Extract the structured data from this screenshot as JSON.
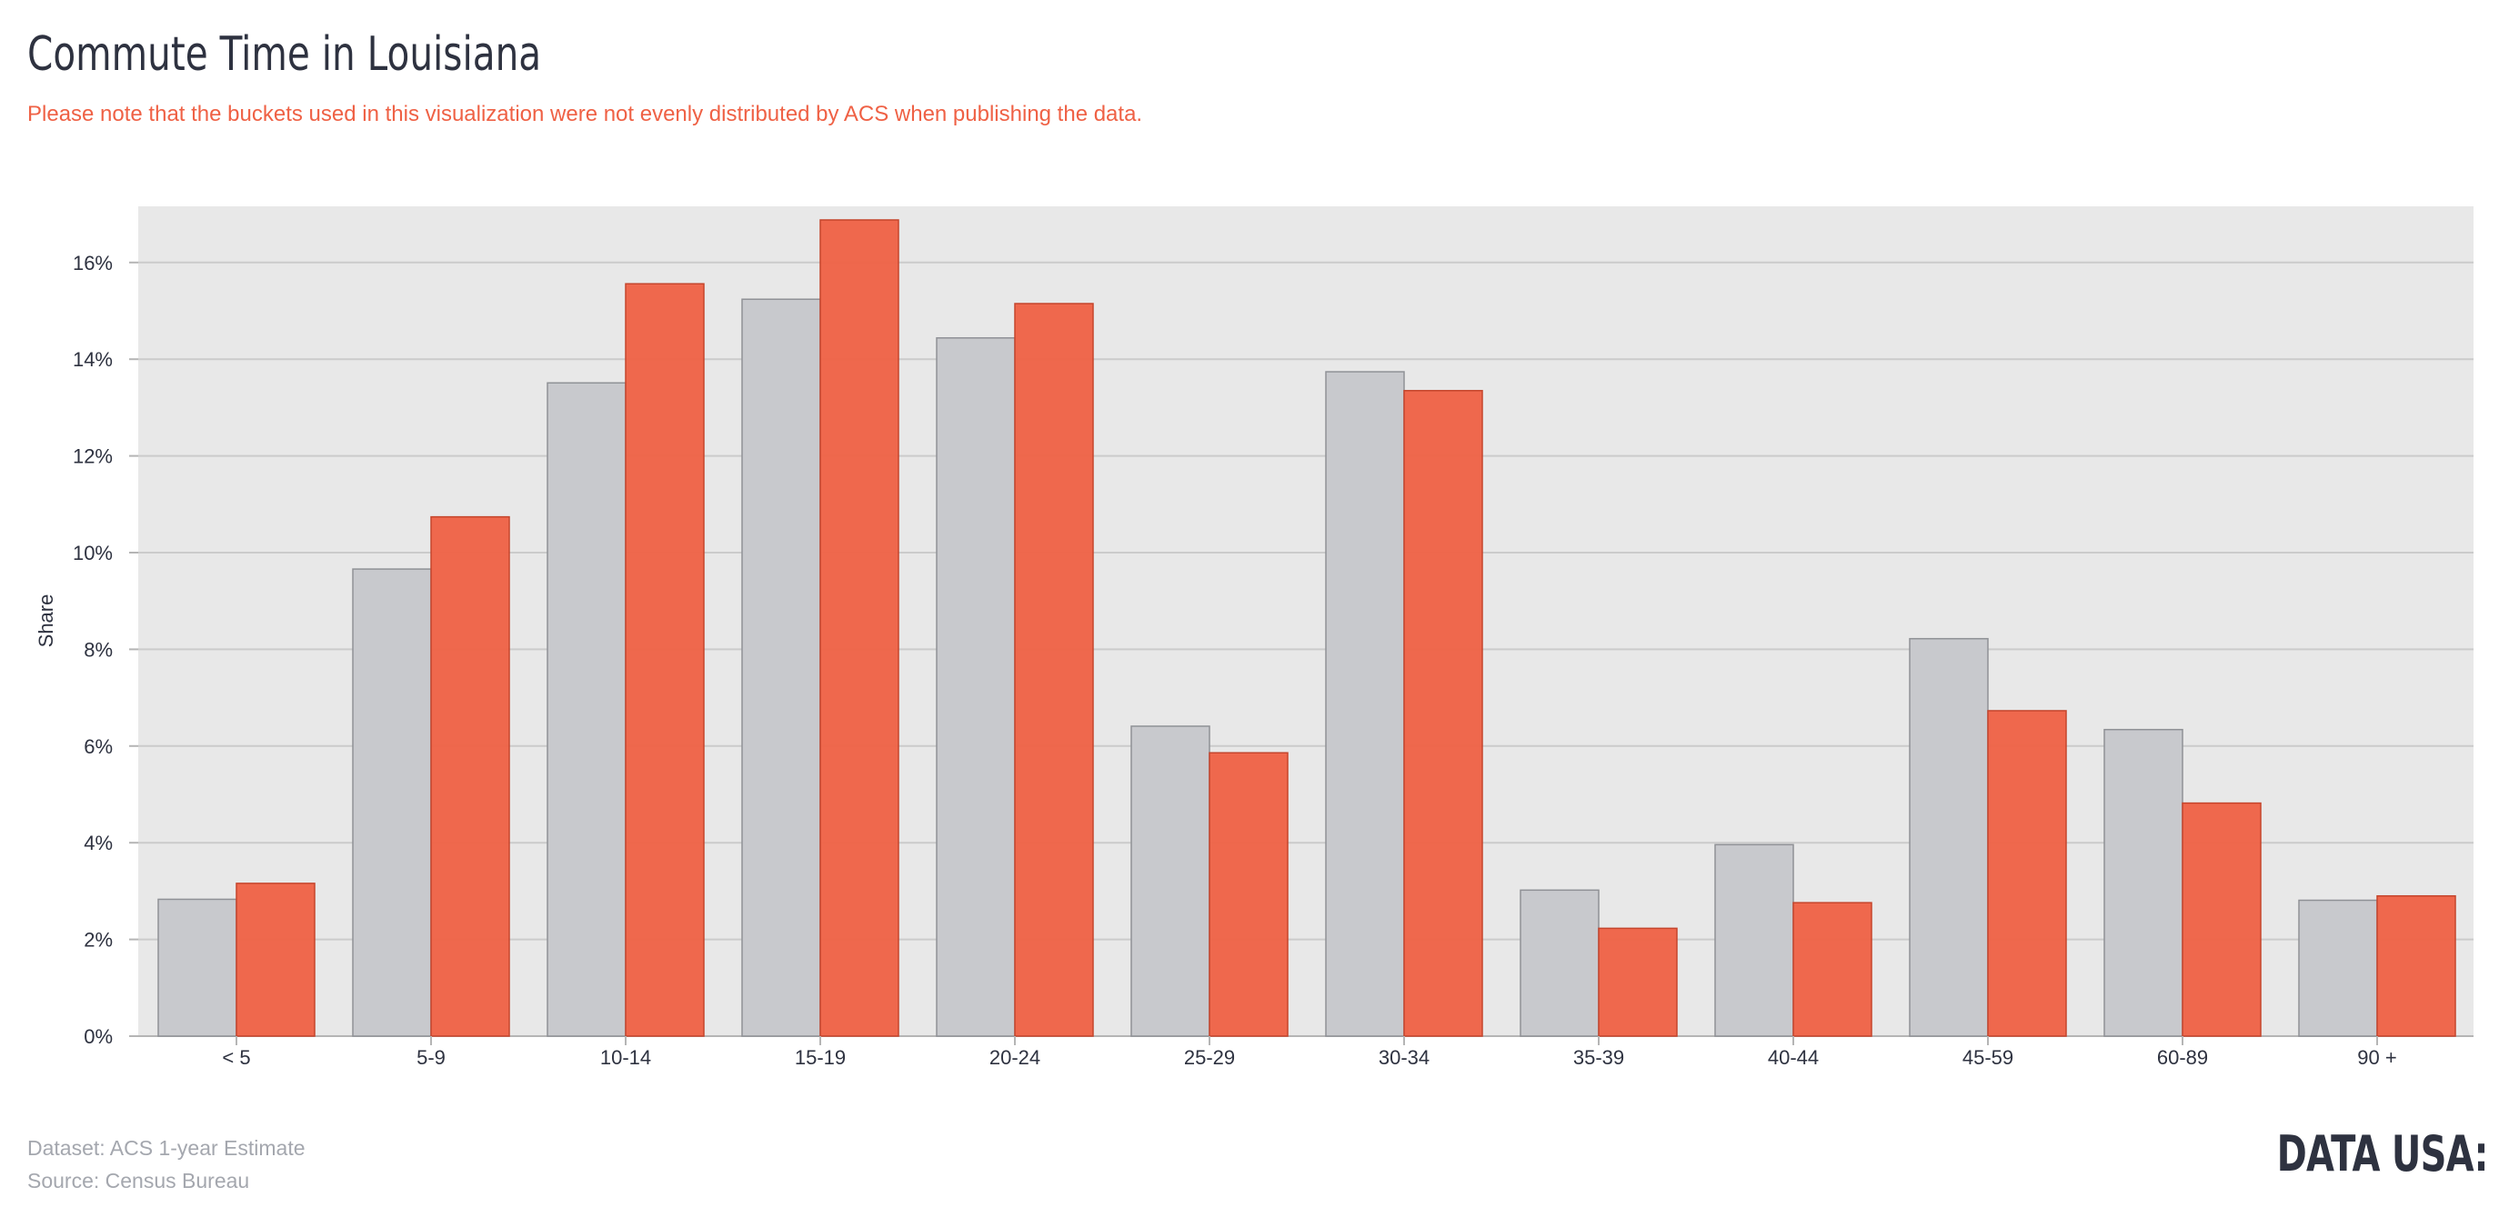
{
  "header": {
    "title": "Commute Time in Louisiana",
    "subtitle": "Please note that the buckets used in this visualization were not evenly distributed by ACS when publishing the data."
  },
  "footer": {
    "dataset": "Dataset: ACS 1-year Estimate",
    "source": "Source: Census Bureau",
    "logo": "DATA USA:"
  },
  "colors": {
    "series_gray": "#c8c9cd",
    "series_red": "#ef6145",
    "plot_background": "#e8e8e8",
    "gridline": "#cbcbcb",
    "text_dark": "#2e3240",
    "text_muted": "#a4a7ae"
  },
  "chart_data": {
    "type": "bar",
    "title": "Commute Time in Louisiana",
    "xlabel": "",
    "ylabel": "Share",
    "ylim": [
      0,
      0.17
    ],
    "yticks": [
      0,
      0.02,
      0.04,
      0.06,
      0.08,
      0.1,
      0.12,
      0.14,
      0.16
    ],
    "ytick_labels": [
      "0%",
      "2%",
      "4%",
      "6%",
      "8%",
      "10%",
      "12%",
      "14%",
      "16%"
    ],
    "grid": true,
    "legend": "none",
    "categories": [
      "< 5",
      "5-9",
      "10-14",
      "15-19",
      "20-24",
      "25-29",
      "30-34",
      "35-39",
      "40-44",
      "45-59",
      "60-89",
      "90 +"
    ],
    "series": [
      {
        "color": "#c8c9cd",
        "values": [
          0.0283,
          0.0966,
          0.1351,
          0.1524,
          0.1444,
          0.0641,
          0.1374,
          0.0302,
          0.0396,
          0.0822,
          0.0634,
          0.0281
        ]
      },
      {
        "color": "#ef6145",
        "values": [
          0.0316,
          0.1074,
          0.1556,
          0.1688,
          0.1515,
          0.0586,
          0.1335,
          0.0223,
          0.0276,
          0.0673,
          0.0482,
          0.029
        ]
      }
    ]
  }
}
